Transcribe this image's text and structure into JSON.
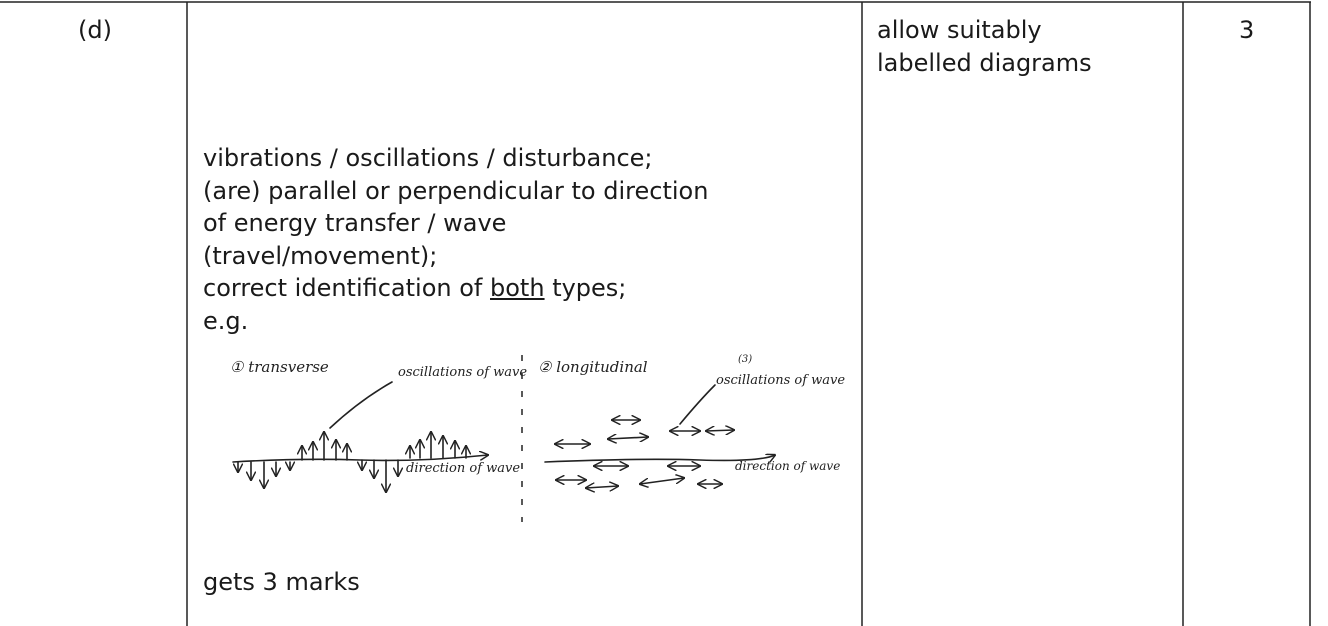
{
  "table": {
    "part": "(d)",
    "answer": {
      "lines": [
        "vibrations / oscillations / disturbance;",
        "(are) parallel or perpendicular to direction",
        "of energy transfer / wave",
        "(travel/movement);"
      ],
      "identification": {
        "before": "correct identification of ",
        "underlined": "both",
        "after": " types;"
      },
      "example": "e.g.",
      "diagram": {
        "transverse": "① transverse",
        "transverse_oscillations": "oscillations of wave",
        "transverse_direction": "direction of wave",
        "longitudinal": "② longitudinal",
        "marks_note": "(3)",
        "longitudinal_oscillations": "oscillations of wave",
        "longitudinal_direction": "direction of wave"
      },
      "footer": "gets 3 marks"
    },
    "notes": [
      "allow suitably",
      "labelled diagrams"
    ],
    "marks": "3"
  }
}
